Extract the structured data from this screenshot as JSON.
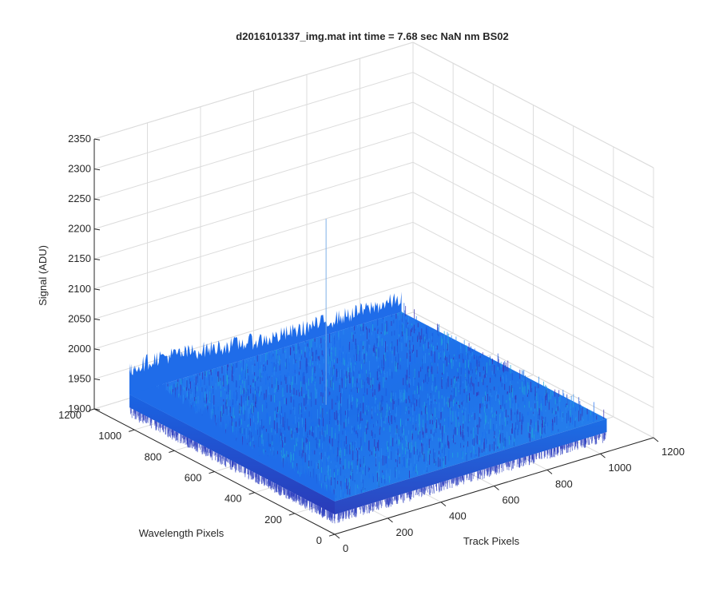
{
  "chart_data": {
    "type": "surface",
    "title": "d2016101337_img.mat int time = 7.68 sec  NaN nm BS02",
    "xlabel": "Track Pixels",
    "ylabel": "Wavelength Pixels",
    "zlabel": "Signal (ADU)",
    "xlim": [
      0,
      1200
    ],
    "ylim": [
      0,
      1200
    ],
    "zlim": [
      1900,
      2350
    ],
    "x_ticks": [
      "0",
      "200",
      "400",
      "600",
      "800",
      "1000",
      "1200"
    ],
    "y_ticks": [
      "0",
      "200",
      "400",
      "600",
      "800",
      "1000",
      "1200"
    ],
    "z_ticks": [
      "1900",
      "1950",
      "2000",
      "2050",
      "2100",
      "2150",
      "2200",
      "2250",
      "2300",
      "2350"
    ],
    "grid": true,
    "surface": {
      "x_extent": [
        0,
        1024
      ],
      "y_extent": [
        0,
        1024
      ],
      "typical_signal": 1955,
      "signal_range": [
        1930,
        1990
      ],
      "peak_signal": 2265,
      "colormap": [
        "#3a2fb0",
        "#1f52d6",
        "#1a6cf0",
        "#2a8cf0",
        "#1fa6d8"
      ]
    }
  }
}
